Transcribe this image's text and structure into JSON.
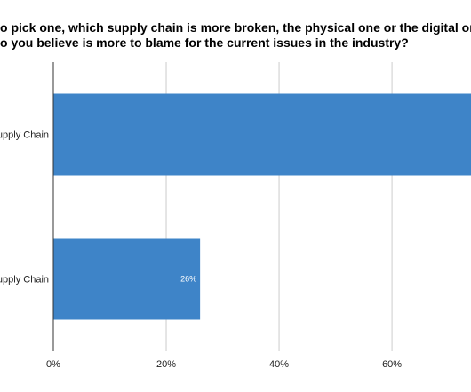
{
  "chart_data": {
    "type": "bar",
    "orientation": "horizontal",
    "title_lines": [
      "o pick one, which supply chain is more broken, the physical one or the digital one? In oth",
      "o you believe is more to blame for the current issues in the industry?"
    ],
    "categories": [
      "upply Chain",
      "upply Chain"
    ],
    "values": [
      74,
      26
    ],
    "data_labels": [
      "",
      "26%"
    ],
    "xlim": [
      0,
      74
    ],
    "xticks": [
      0,
      20,
      40,
      60
    ],
    "xtick_labels": [
      "0%",
      "20%",
      "40%",
      "60%"
    ],
    "grid": true,
    "bar_color": "#3e84c8",
    "grid_color": "#cccccc",
    "axis_color": "#333333"
  }
}
